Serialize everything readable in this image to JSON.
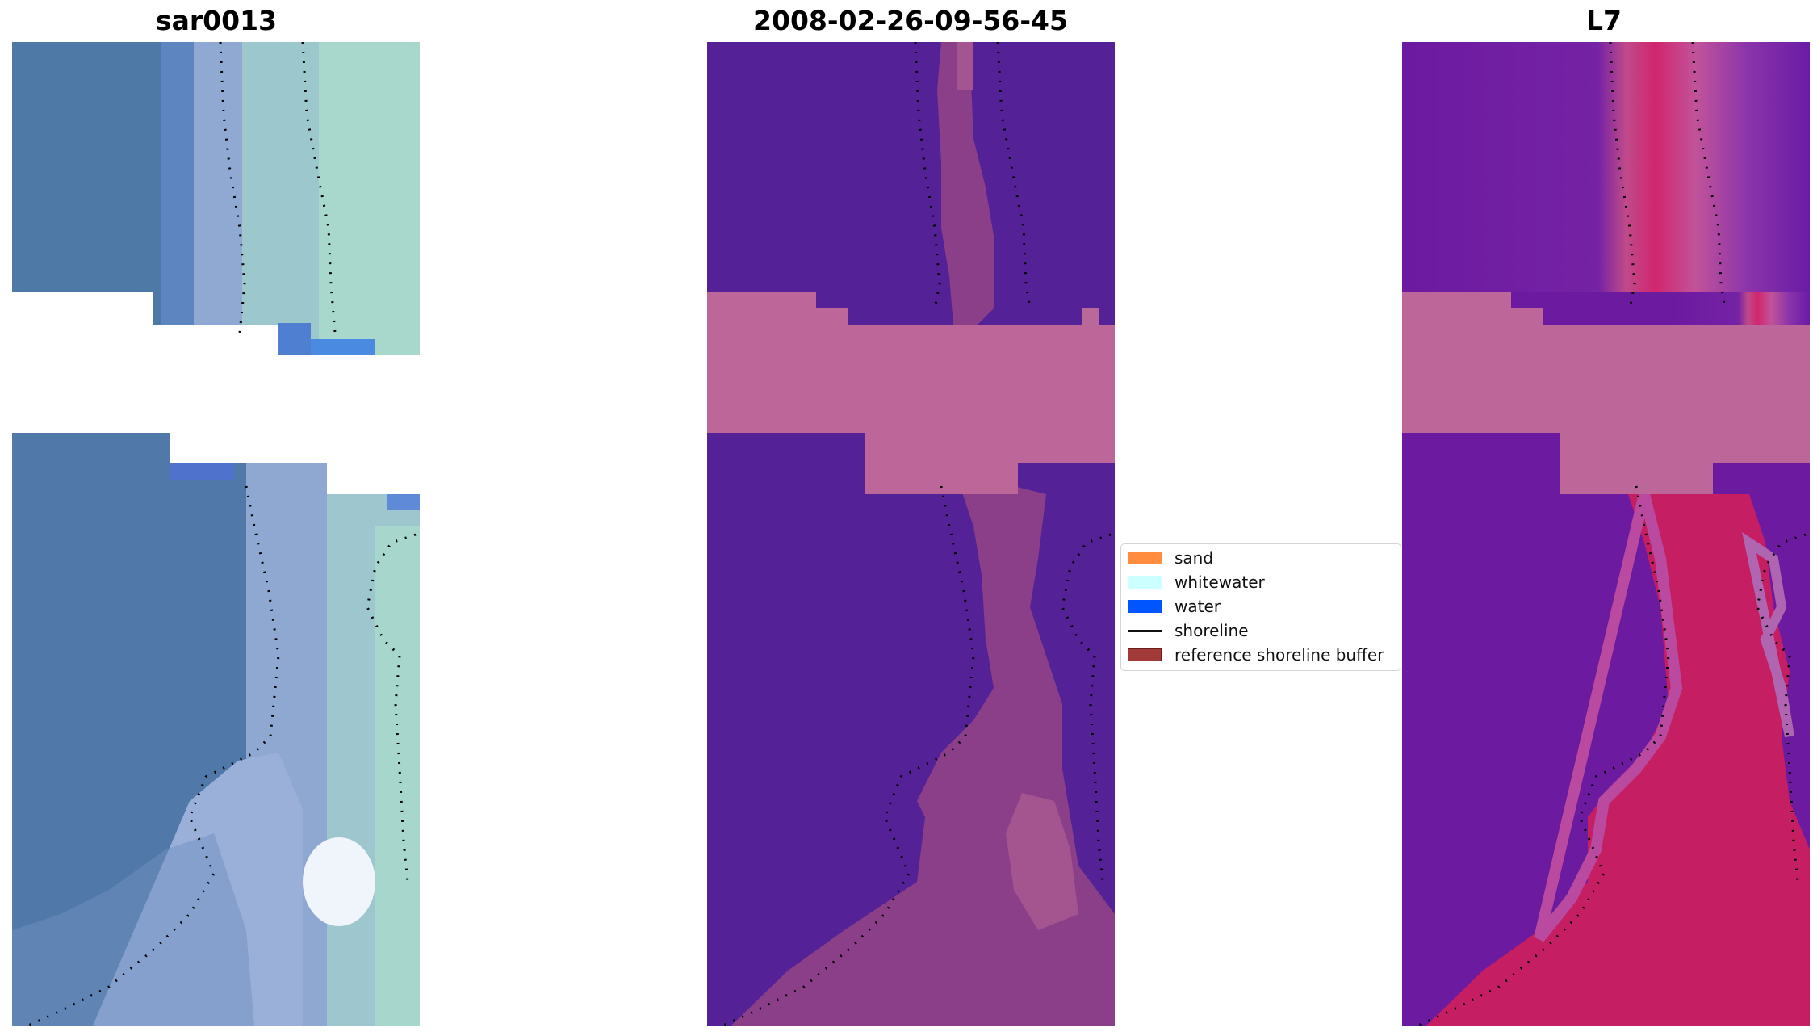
{
  "panels": [
    {
      "title": "sar0013",
      "kind": "rgb"
    },
    {
      "title": "2008-02-26-09-56-45",
      "kind": "classified"
    },
    {
      "title": "L7",
      "kind": "index"
    }
  ],
  "legend": {
    "items": [
      {
        "label": "sand",
        "color": "#ff8c3f",
        "type": "patch"
      },
      {
        "label": "whitewater",
        "color": "#ccffff",
        "type": "patch"
      },
      {
        "label": "water",
        "color": "#0055ff",
        "type": "patch"
      },
      {
        "label": "shoreline",
        "color": "#000000",
        "type": "line"
      },
      {
        "label": "reference shoreline buffer",
        "color": "#a33a3a",
        "type": "patch"
      }
    ]
  },
  "colors": {
    "rgb_water": "#4a78a8",
    "rgb_shallow": "#8fa9d0",
    "rgb_foam": "#a8d8d0",
    "classified_water": "#542196",
    "classified_land": "#b9689a",
    "index_low": "#6c1aa0",
    "index_high": "#c81650",
    "nodata_band": "#bd6699"
  }
}
